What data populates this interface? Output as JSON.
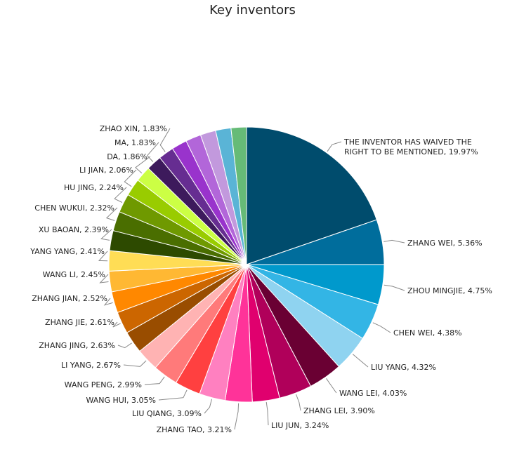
{
  "chart_data": {
    "type": "pie",
    "title": "Key inventors",
    "slices": [
      {
        "label": "THE INVENTOR HAS WAIVED THE RIGHT TO BE MENTIONED",
        "label_lines": [
          "THE INVENTOR HAS WAIVED THE",
          "RIGHT TO BE MENTIONED, 19.97%"
        ],
        "value": 19.97,
        "color": "#004c6d"
      },
      {
        "label": "ZHANG WEI",
        "label_lines": [
          "ZHANG WEI, 5.36%"
        ],
        "value": 5.36,
        "color": "#006d9c"
      },
      {
        "label": "ZHOU MINGJIE",
        "label_lines": [
          "ZHOU MINGJIE, 4.75%"
        ],
        "value": 4.75,
        "color": "#0099cc"
      },
      {
        "label": "CHEN WEI",
        "label_lines": [
          "CHEN WEI, 4.38%"
        ],
        "value": 4.38,
        "color": "#33b5e5"
      },
      {
        "label": "LIU YANG",
        "label_lines": [
          "LIU YANG, 4.32%"
        ],
        "value": 4.32,
        "color": "#8fd3f0"
      },
      {
        "label": "WANG LEI",
        "label_lines": [
          "WANG LEI, 4.03%"
        ],
        "value": 4.03,
        "color": "#6a0033"
      },
      {
        "label": "ZHANG LEI",
        "label_lines": [
          "ZHANG LEI, 3.90%"
        ],
        "value": 3.9,
        "color": "#b0005a"
      },
      {
        "label": "LIU JUN",
        "label_lines": [
          "LIU JUN, 3.24%"
        ],
        "value": 3.24,
        "color": "#e0006e"
      },
      {
        "label": "ZHANG TAO",
        "label_lines": [
          "ZHANG TAO, 3.21%"
        ],
        "value": 3.21,
        "color": "#ff3399"
      },
      {
        "label": "LIU QIANG",
        "label_lines": [
          "LIU QIANG, 3.09%"
        ],
        "value": 3.09,
        "color": "#ff80c0"
      },
      {
        "label": "WANG HUI",
        "label_lines": [
          "WANG HUI, 3.05%"
        ],
        "value": 3.05,
        "color": "#ff4040"
      },
      {
        "label": "WANG PENG",
        "label_lines": [
          "WANG PENG, 2.99%"
        ],
        "value": 2.99,
        "color": "#ff7a7a"
      },
      {
        "label": "LI YANG",
        "label_lines": [
          "LI YANG, 2.67%"
        ],
        "value": 2.67,
        "color": "#ffb3b3"
      },
      {
        "label": "ZHANG JING",
        "label_lines": [
          "ZHANG JING, 2.63%"
        ],
        "value": 2.63,
        "color": "#994d00"
      },
      {
        "label": "ZHANG JIE",
        "label_lines": [
          "ZHANG JIE, 2.61%"
        ],
        "value": 2.61,
        "color": "#cc6600"
      },
      {
        "label": "ZHANG JIAN",
        "label_lines": [
          "ZHANG JIAN, 2.52%"
        ],
        "value": 2.52,
        "color": "#ff8800"
      },
      {
        "label": "WANG LI",
        "label_lines": [
          "WANG LI, 2.45%"
        ],
        "value": 2.45,
        "color": "#ffb833"
      },
      {
        "label": "YANG YANG",
        "label_lines": [
          "YANG YANG, 2.41%"
        ],
        "value": 2.41,
        "color": "#ffdd55"
      },
      {
        "label": "XU BAOAN",
        "label_lines": [
          "XU BAOAN, 2.39%"
        ],
        "value": 2.39,
        "color": "#2d4a00"
      },
      {
        "label": "CHEN WUKUI",
        "label_lines": [
          "CHEN WUKUI, 2.32%"
        ],
        "value": 2.32,
        "color": "#4a6e00"
      },
      {
        "label": "HU JING",
        "label_lines": [
          "HU JING, 2.24%"
        ],
        "value": 2.24,
        "color": "#6f9900"
      },
      {
        "label": "LI JIAN",
        "label_lines": [
          "LI JIAN, 2.06%"
        ],
        "value": 2.06,
        "color": "#99cc00"
      },
      {
        "label": "DA",
        "label_lines": [
          "DA, 1.86%"
        ],
        "value": 1.86,
        "color": "#ccff44"
      },
      {
        "label": "MA",
        "label_lines": [
          "MA, 1.83%"
        ],
        "value": 1.83,
        "color": "#3d1a5c"
      },
      {
        "label": "ZHAO XIN",
        "label_lines": [
          "ZHAO XIN, 1.83%"
        ],
        "value": 1.83,
        "color": "#662d91"
      },
      {
        "label": "",
        "label_lines": [],
        "value": 1.83,
        "color": "#9933cc"
      },
      {
        "label": "",
        "label_lines": [],
        "value": 1.83,
        "color": "#b266d9"
      },
      {
        "label": "",
        "label_lines": [],
        "value": 1.83,
        "color": "#c299dd"
      },
      {
        "label": "",
        "label_lines": [],
        "value": 1.83,
        "color": "#5ab4d6"
      },
      {
        "label": "",
        "label_lines": [],
        "value": 1.83,
        "color": "#66bb77"
      }
    ]
  }
}
